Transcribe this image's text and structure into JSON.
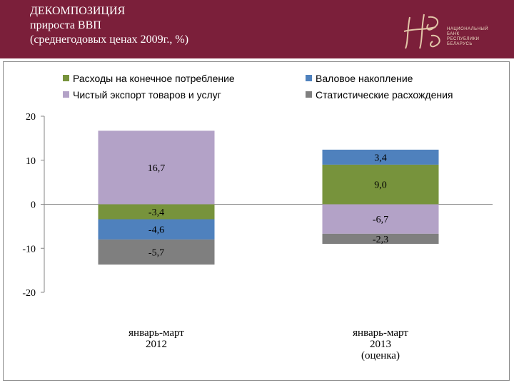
{
  "header": {
    "title_lines": [
      "ДЕКОМПОЗИЦИЯ",
      "прироста ВВП",
      "(среднегодовых ценах 2009г., %)"
    ],
    "logo": {
      "text_lines": [
        "НАЦИОНАЛЬНЫЙ",
        "БАНК",
        "РЕСПУБЛИКИ",
        "БЕЛАРУСЬ"
      ]
    }
  },
  "colors": {
    "header_bg": "#7b1f3a",
    "consumption": "#77933c",
    "accumulation": "#4f81bd",
    "net_export": "#b3a2c7",
    "discrepancy": "#7f7f7f"
  },
  "chart_data": {
    "type": "bar",
    "stacked": true,
    "categories": [
      [
        "январь-март",
        "2012"
      ],
      [
        "январь-март",
        "2013",
        "(оценка)"
      ]
    ],
    "series": [
      {
        "key": "consumption",
        "name": "Расходы на конечное потребление",
        "color": "#77933c",
        "values": [
          -3.4,
          9.0
        ],
        "labels": [
          "-3,4",
          "9,0"
        ]
      },
      {
        "key": "accumulation",
        "name": "Валовое накопление",
        "color": "#4f81bd",
        "values": [
          -4.6,
          3.4
        ],
        "labels": [
          "-4,6",
          "3,4"
        ]
      },
      {
        "key": "net_export",
        "name": "Чистый экспорт товаров и услуг",
        "color": "#b3a2c7",
        "values": [
          16.7,
          -6.7
        ],
        "labels": [
          "16,7",
          "-6,7"
        ]
      },
      {
        "key": "discrepancy",
        "name": "Статистические расхождения",
        "color": "#7f7f7f",
        "values": [
          -5.7,
          -2.3
        ],
        "labels": [
          "-5,7",
          "-2,3"
        ]
      }
    ],
    "ylim": [
      -20,
      20
    ],
    "yticks": [
      20,
      10,
      0,
      -10,
      -20
    ],
    "gridlines": false,
    "legend_position": "top"
  }
}
